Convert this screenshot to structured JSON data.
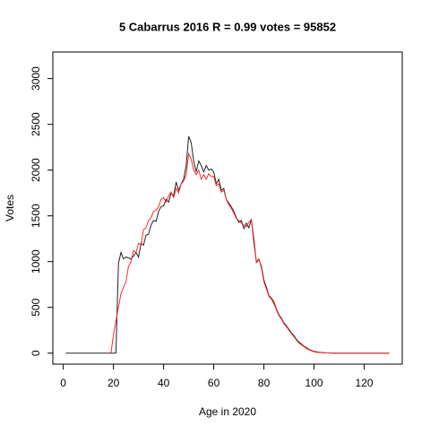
{
  "chart_data": {
    "type": "line",
    "title": "5 Cabarrus 2016 R = 0.99 votes = 95852",
    "x_label": "Age in 2020",
    "y_label": "Votes",
    "x": [
      1,
      2,
      3,
      4,
      5,
      6,
      7,
      8,
      9,
      10,
      11,
      12,
      13,
      14,
      15,
      16,
      17,
      18,
      19,
      20,
      21,
      22,
      23,
      24,
      25,
      26,
      27,
      28,
      29,
      30,
      31,
      32,
      33,
      34,
      35,
      36,
      37,
      38,
      39,
      40,
      41,
      42,
      43,
      44,
      45,
      46,
      47,
      48,
      49,
      50,
      51,
      52,
      53,
      54,
      55,
      56,
      57,
      58,
      59,
      60,
      61,
      62,
      63,
      64,
      65,
      66,
      67,
      68,
      69,
      70,
      71,
      72,
      73,
      74,
      75,
      76,
      77,
      78,
      79,
      80,
      81,
      82,
      83,
      84,
      85,
      86,
      87,
      88,
      89,
      90,
      91,
      92,
      93,
      94,
      95,
      96,
      97,
      98,
      99,
      100,
      101,
      102,
      103,
      104,
      105,
      106,
      107,
      108,
      109,
      110,
      111,
      112,
      113,
      114,
      115,
      116,
      117,
      118,
      119,
      120,
      121,
      122,
      123,
      124,
      125,
      126,
      127,
      128,
      129,
      130
    ],
    "series": [
      {
        "color": "#222222",
        "values": [
          0,
          0,
          0,
          0,
          0,
          0,
          0,
          0,
          0,
          0,
          0,
          0,
          0,
          0,
          0,
          0,
          0,
          0,
          0,
          0,
          0,
          980,
          1100,
          1030,
          1050,
          1040,
          1030,
          1060,
          1100,
          1050,
          1200,
          1180,
          1290,
          1300,
          1400,
          1450,
          1440,
          1550,
          1600,
          1610,
          1680,
          1650,
          1750,
          1720,
          1870,
          1780,
          1850,
          1900,
          2050,
          2370,
          2300,
          2100,
          1980,
          2100,
          2050,
          1980,
          2050,
          2000,
          2010,
          1980,
          1850,
          1900,
          1780,
          1800,
          1680,
          1640,
          1600,
          1550,
          1480,
          1430,
          1450,
          1360,
          1420,
          1370,
          1460,
          1250,
          990,
          1020,
          950,
          800,
          720,
          630,
          600,
          560,
          480,
          420,
          380,
          330,
          300,
          260,
          220,
          190,
          150,
          120,
          100,
          75,
          60,
          40,
          30,
          20,
          15,
          10,
          8,
          5,
          3,
          2,
          1,
          0,
          0,
          0,
          0,
          0,
          0,
          0,
          0,
          0,
          0,
          0,
          0,
          0,
          0,
          0,
          0,
          0,
          0,
          0,
          0,
          0,
          0,
          0
        ]
      },
      {
        "color": "#ff2a2a",
        "values": [
          null,
          null,
          null,
          null,
          null,
          null,
          null,
          null,
          null,
          null,
          null,
          null,
          null,
          null,
          null,
          null,
          null,
          null,
          0,
          200,
          350,
          500,
          650,
          720,
          780,
          950,
          1000,
          1120,
          1100,
          1200,
          1180,
          1350,
          1370,
          1450,
          1480,
          1550,
          1560,
          1600,
          1680,
          1700,
          1650,
          1720,
          1760,
          1700,
          1800,
          1750,
          1850,
          1880,
          1950,
          2180,
          2120,
          2000,
          1950,
          2000,
          1900,
          1950,
          1900,
          1960,
          1930,
          1930,
          1830,
          1850,
          1760,
          1780,
          1680,
          1620,
          1580,
          1530,
          1470,
          1450,
          1420,
          1400,
          1380,
          1430,
          1460,
          1200,
          1000,
          1030,
          930,
          780,
          700,
          620,
          590,
          540,
          470,
          410,
          370,
          320,
          290,
          250,
          210,
          180,
          140,
          110,
          90,
          70,
          50,
          35,
          25,
          15,
          10,
          7,
          5,
          3,
          2,
          1,
          1,
          0,
          0,
          0,
          0,
          0,
          0,
          0,
          0,
          0,
          0,
          0,
          0,
          0,
          0,
          0,
          0,
          0,
          0,
          0,
          0,
          0,
          0,
          0
        ]
      }
    ],
    "xlim": [
      -4.16,
      135.16
    ],
    "ylim": [
      -120,
      3290
    ],
    "xticks": [
      0,
      20,
      40,
      60,
      80,
      100,
      120
    ],
    "yticks": [
      0,
      500,
      1000,
      1500,
      2000,
      2500,
      3000
    ]
  }
}
